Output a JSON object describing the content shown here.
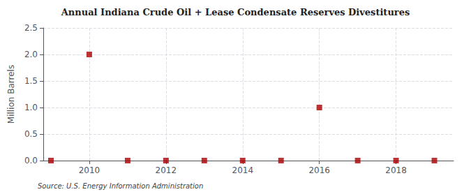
{
  "chart_data": {
    "type": "scatter",
    "title": "Annual Indiana Crude Oil + Lease Condensate Reserves Divestitures",
    "ylabel": "Million Barrels",
    "annotations": [
      "Source: U.S. Energy Information Administration"
    ],
    "x": [
      2009,
      2010,
      2011,
      2012,
      2013,
      2014,
      2015,
      2016,
      2017,
      2018,
      2019
    ],
    "values": [
      0.0,
      2.0,
      0.0,
      0.0,
      0.0,
      0.0,
      0.0,
      1.0,
      0.0,
      0.0,
      0.0
    ],
    "color": "#aa0000",
    "marker": "square",
    "xlim": [
      2008.8,
      2019.5
    ],
    "ylim": [
      0,
      2.5
    ],
    "xticks": [
      2010,
      2012,
      2014,
      2016,
      2018
    ],
    "yticks": [
      {
        "value": 0,
        "label": "0.0"
      },
      0.5,
      {
        "value": 1,
        "label": "1.0"
      },
      1.5,
      {
        "value": 2,
        "label": "2.0"
      },
      2.5
    ],
    "grid": true
  }
}
